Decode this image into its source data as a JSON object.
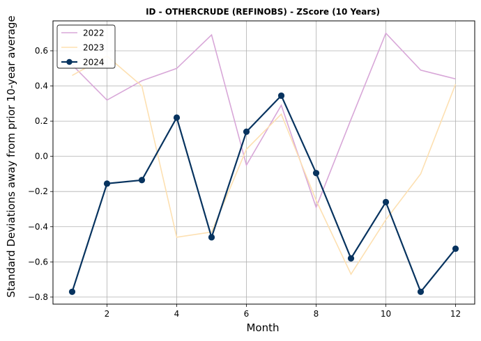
{
  "chart_data": {
    "type": "line",
    "title": "ID - OTHERCRUDE (REFINOBS) - ZScore (10 Years)",
    "xlabel": "Month",
    "ylabel": "Standard Deviations away from prior 10-year average",
    "x": [
      1,
      2,
      3,
      4,
      5,
      6,
      7,
      8,
      9,
      10,
      11,
      12
    ],
    "xlim": [
      0.45,
      12.55
    ],
    "ylim": [
      -0.84,
      0.77
    ],
    "xticks": [
      2,
      4,
      6,
      8,
      10,
      12
    ],
    "yticks": [
      -0.8,
      -0.6,
      -0.4,
      -0.2,
      0.0,
      0.2,
      0.4,
      0.6
    ],
    "ytick_labels": [
      "−0.8",
      "−0.6",
      "−0.4",
      "−0.2",
      "0.0",
      "0.2",
      "0.4",
      "0.6"
    ],
    "grid": true,
    "legend_position": "top-left",
    "series": [
      {
        "name": "2022",
        "color": "#d8a7d8",
        "markers": false,
        "linewidth": 1.6,
        "values": [
          0.52,
          0.32,
          0.43,
          0.5,
          0.69,
          -0.05,
          0.29,
          -0.29,
          0.21,
          0.7,
          0.49,
          0.44
        ]
      },
      {
        "name": "2023",
        "color": "#fde0b1",
        "markers": false,
        "linewidth": 1.6,
        "values": [
          0.46,
          0.57,
          0.4,
          -0.46,
          -0.43,
          0.04,
          0.24,
          -0.25,
          -0.67,
          -0.36,
          -0.1,
          0.41
        ]
      },
      {
        "name": "2024",
        "color": "#07335f",
        "markers": true,
        "linewidth": 2.2,
        "values": [
          -0.77,
          -0.155,
          -0.135,
          0.22,
          -0.46,
          0.14,
          0.345,
          -0.095,
          -0.58,
          -0.26,
          -0.77,
          -0.525
        ]
      }
    ]
  }
}
